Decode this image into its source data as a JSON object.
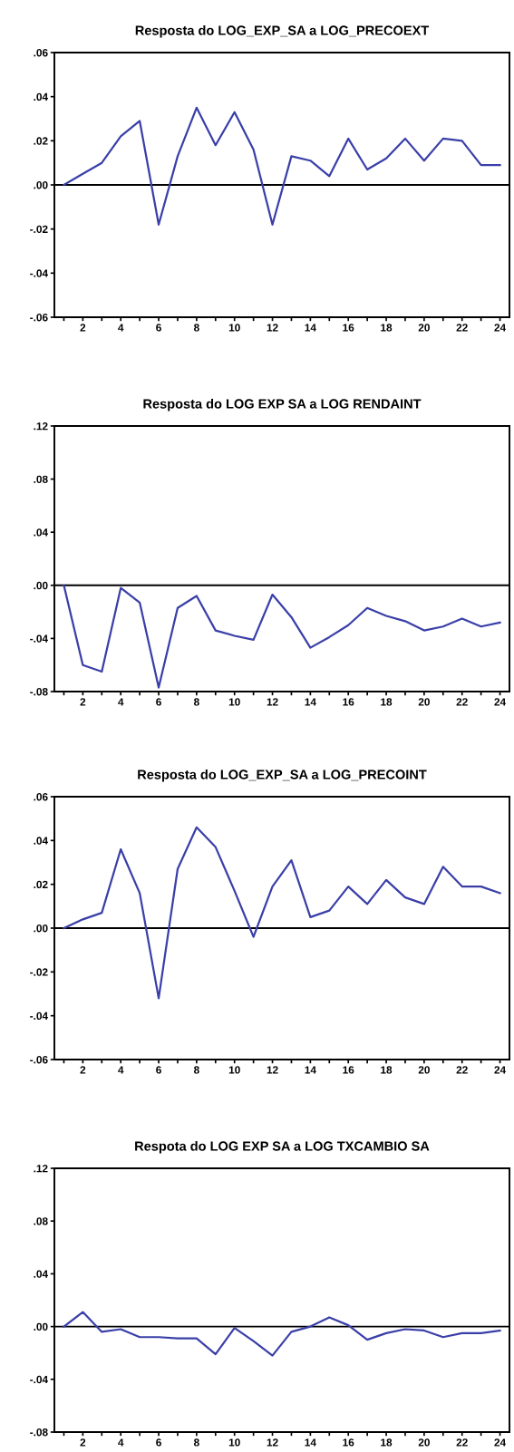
{
  "chart_data": [
    {
      "type": "line",
      "title": "Resposta do LOG_EXP_SA a LOG_PRECOEXT",
      "x": [
        1,
        2,
        3,
        4,
        5,
        6,
        7,
        8,
        9,
        10,
        11,
        12,
        13,
        14,
        15,
        16,
        17,
        18,
        19,
        20,
        21,
        22,
        23,
        24
      ],
      "series": [
        {
          "color": "#3a3fa8",
          "values": [
            0,
            0.005,
            0.01,
            0.022,
            0.029,
            -0.018,
            0.013,
            0.035,
            0.018,
            0.033,
            0.016,
            -0.018,
            0.013,
            0.011,
            0.004,
            0.021,
            0.007,
            0.012,
            0.021,
            0.011,
            0.021,
            0.02,
            0.009,
            0.009
          ]
        }
      ],
      "xlim": [
        0.5,
        24.5
      ],
      "xticks": [
        {
          "value": 1,
          "label": null
        },
        2,
        {
          "value": 3,
          "label": null
        },
        4,
        {
          "value": 5,
          "label": null
        },
        6,
        {
          "value": 7,
          "label": null
        },
        8,
        {
          "value": 9,
          "label": null
        },
        10,
        {
          "value": 11,
          "label": null
        },
        12,
        {
          "value": 13,
          "label": null
        },
        14,
        {
          "value": 15,
          "label": null
        },
        16,
        {
          "value": 17,
          "label": null
        },
        18,
        {
          "value": 19,
          "label": null
        },
        20,
        {
          "value": 21,
          "label": null
        },
        22,
        {
          "value": 23,
          "label": null
        },
        24
      ],
      "ylim": [
        -0.06,
        0.06
      ],
      "yticks": [
        {
          "value": -0.06,
          "label": "-.06"
        },
        {
          "value": -0.04,
          "label": "-.04"
        },
        {
          "value": -0.02,
          "label": "-.02"
        },
        {
          "value": 0,
          "label": ".00"
        },
        {
          "value": 0.02,
          "label": ".02"
        },
        {
          "value": 0.04,
          "label": ".04"
        },
        {
          "value": 0.06,
          "label": ".06"
        }
      ],
      "ref_lines": [
        {
          "axis": "y",
          "value": 0,
          "color": "#000000"
        }
      ],
      "grid": false,
      "legend": false
    },
    {
      "type": "line",
      "title": "Resposta do LOG EXP SA a LOG RENDAINT",
      "x": [
        1,
        2,
        3,
        4,
        5,
        6,
        7,
        8,
        9,
        10,
        11,
        12,
        13,
        14,
        15,
        16,
        17,
        18,
        19,
        20,
        21,
        22,
        23,
        24
      ],
      "series": [
        {
          "color": "#3a3fa8",
          "values": [
            0,
            -0.06,
            -0.065,
            -0.002,
            -0.013,
            -0.077,
            -0.017,
            -0.008,
            -0.034,
            -0.038,
            -0.041,
            -0.007,
            -0.024,
            -0.047,
            -0.039,
            -0.03,
            -0.017,
            -0.023,
            -0.027,
            -0.034,
            -0.031,
            -0.025,
            -0.031,
            -0.028
          ]
        }
      ],
      "xlim": [
        0.5,
        24.5
      ],
      "xticks": [
        {
          "value": 1,
          "label": null
        },
        2,
        {
          "value": 3,
          "label": null
        },
        4,
        {
          "value": 5,
          "label": null
        },
        6,
        {
          "value": 7,
          "label": null
        },
        8,
        {
          "value": 9,
          "label": null
        },
        10,
        {
          "value": 11,
          "label": null
        },
        12,
        {
          "value": 13,
          "label": null
        },
        14,
        {
          "value": 15,
          "label": null
        },
        16,
        {
          "value": 17,
          "label": null
        },
        18,
        {
          "value": 19,
          "label": null
        },
        20,
        {
          "value": 21,
          "label": null
        },
        22,
        {
          "value": 23,
          "label": null
        },
        24
      ],
      "ylim": [
        -0.08,
        0.12
      ],
      "yticks": [
        {
          "value": -0.08,
          "label": "-.08"
        },
        {
          "value": -0.04,
          "label": "-.04"
        },
        {
          "value": 0,
          "label": ".00"
        },
        {
          "value": 0.04,
          "label": ".04"
        },
        {
          "value": 0.08,
          "label": ".08"
        },
        {
          "value": 0.12,
          "label": ".12"
        }
      ],
      "ref_lines": [
        {
          "axis": "y",
          "value": 0,
          "color": "#000000"
        }
      ],
      "grid": false,
      "legend": false
    },
    {
      "type": "line",
      "title": "Resposta do LOG_EXP_SA a LOG_PRECOINT",
      "x": [
        1,
        2,
        3,
        4,
        5,
        6,
        7,
        8,
        9,
        10,
        11,
        12,
        13,
        14,
        15,
        16,
        17,
        18,
        19,
        20,
        21,
        22,
        23,
        24
      ],
      "series": [
        {
          "color": "#3a3fa8",
          "values": [
            0,
            0.004,
            0.007,
            0.036,
            0.016,
            -0.032,
            0.027,
            0.046,
            0.037,
            0.017,
            -0.004,
            0.019,
            0.031,
            0.005,
            0.008,
            0.019,
            0.011,
            0.022,
            0.014,
            0.011,
            0.028,
            0.019,
            0.019,
            0.016
          ]
        }
      ],
      "xlim": [
        0.5,
        24.5
      ],
      "xticks": [
        {
          "value": 1,
          "label": null
        },
        2,
        {
          "value": 3,
          "label": null
        },
        4,
        {
          "value": 5,
          "label": null
        },
        6,
        {
          "value": 7,
          "label": null
        },
        8,
        {
          "value": 9,
          "label": null
        },
        10,
        {
          "value": 11,
          "label": null
        },
        12,
        {
          "value": 13,
          "label": null
        },
        14,
        {
          "value": 15,
          "label": null
        },
        16,
        {
          "value": 17,
          "label": null
        },
        18,
        {
          "value": 19,
          "label": null
        },
        20,
        {
          "value": 21,
          "label": null
        },
        22,
        {
          "value": 23,
          "label": null
        },
        24
      ],
      "ylim": [
        -0.06,
        0.06
      ],
      "yticks": [
        {
          "value": -0.06,
          "label": "-.06"
        },
        {
          "value": -0.04,
          "label": "-.04"
        },
        {
          "value": -0.02,
          "label": "-.02"
        },
        {
          "value": 0,
          "label": ".00"
        },
        {
          "value": 0.02,
          "label": ".02"
        },
        {
          "value": 0.04,
          "label": ".04"
        },
        {
          "value": 0.06,
          "label": ".06"
        }
      ],
      "ref_lines": [
        {
          "axis": "y",
          "value": 0,
          "color": "#000000"
        }
      ],
      "grid": false,
      "legend": false
    },
    {
      "type": "line",
      "title": "Respota do LOG EXP SA a LOG TXCAMBIO SA",
      "x": [
        1,
        2,
        3,
        4,
        5,
        6,
        7,
        8,
        9,
        10,
        11,
        12,
        13,
        14,
        15,
        16,
        17,
        18,
        19,
        20,
        21,
        22,
        23,
        24
      ],
      "series": [
        {
          "color": "#3a3fa8",
          "values": [
            0,
            0.011,
            -0.004,
            -0.002,
            -0.008,
            -0.008,
            -0.009,
            -0.009,
            -0.021,
            -0.001,
            -0.011,
            -0.022,
            -0.004,
            0.0,
            0.007,
            0.001,
            -0.01,
            -0.005,
            -0.002,
            -0.003,
            -0.008,
            -0.005,
            -0.005,
            -0.003
          ]
        }
      ],
      "xlim": [
        0.5,
        24.5
      ],
      "xticks": [
        {
          "value": 1,
          "label": null
        },
        2,
        {
          "value": 3,
          "label": null
        },
        4,
        {
          "value": 5,
          "label": null
        },
        6,
        {
          "value": 7,
          "label": null
        },
        8,
        {
          "value": 9,
          "label": null
        },
        10,
        {
          "value": 11,
          "label": null
        },
        12,
        {
          "value": 13,
          "label": null
        },
        14,
        {
          "value": 15,
          "label": null
        },
        16,
        {
          "value": 17,
          "label": null
        },
        18,
        {
          "value": 19,
          "label": null
        },
        20,
        {
          "value": 21,
          "label": null
        },
        22,
        {
          "value": 23,
          "label": null
        },
        24
      ],
      "ylim": [
        -0.08,
        0.12
      ],
      "yticks": [
        {
          "value": -0.08,
          "label": "-.08"
        },
        {
          "value": -0.04,
          "label": "-.04"
        },
        {
          "value": 0,
          "label": ".00"
        },
        {
          "value": 0.04,
          "label": ".04"
        },
        {
          "value": 0.08,
          "label": ".08"
        },
        {
          "value": 0.12,
          "label": ".12"
        }
      ],
      "ref_lines": [
        {
          "axis": "y",
          "value": 0,
          "color": "#000000"
        }
      ],
      "grid": false,
      "legend": false
    }
  ]
}
